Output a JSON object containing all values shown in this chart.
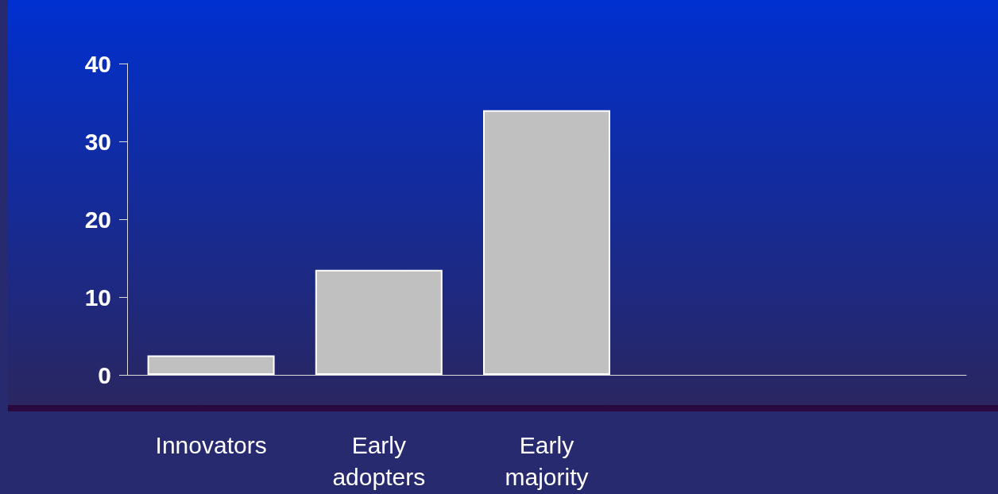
{
  "chart_data": {
    "type": "bar",
    "categories": [
      "Innovators",
      "Early\nadopters",
      "Early\nmajority",
      null,
      null
    ],
    "values": [
      2.5,
      13.5,
      34,
      null,
      null
    ],
    "color": "#c0c0c0",
    "ylim": [
      0,
      40
    ],
    "yticks": [
      0,
      10,
      20,
      30,
      40
    ],
    "grid": false
  }
}
